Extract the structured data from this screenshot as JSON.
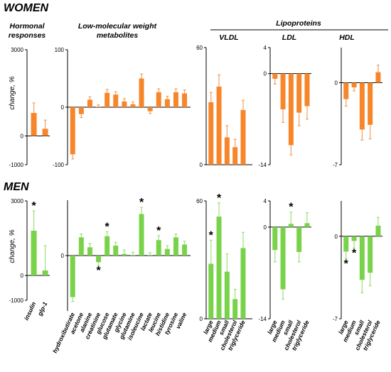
{
  "sections": {
    "women": "WOMEN",
    "men": "MEN"
  },
  "ylabel": "change, %",
  "group_headers": {
    "hormonal": [
      "Hormonal",
      "responses"
    ],
    "metabolites": [
      "Low-molecular weight",
      "metabolites"
    ],
    "lipoproteins": "Lipoproteins",
    "vldl": "VLDL",
    "ldl": "LDL",
    "hdl": "HDL"
  },
  "colors": {
    "women": "#F7862B",
    "men": "#79D34A",
    "error": "#f0a060",
    "error_men": "#9ee07a"
  },
  "chart_data": [
    {
      "id": "women-hormonal",
      "type": "bar",
      "sex": "women",
      "panel": "hormonal",
      "categories": [
        "insulin",
        "glp-1"
      ],
      "values": [
        800,
        250
      ],
      "errors": [
        350,
        300
      ],
      "significant": [
        false,
        false
      ],
      "ylim": [
        -1000,
        3000
      ],
      "yticks": [
        "3000",
        "0",
        "-1000"
      ],
      "ytick_values": [
        3000,
        0,
        -1000
      ]
    },
    {
      "id": "women-metabolites",
      "type": "bar",
      "sex": "women",
      "panel": "metabolites",
      "categories": [
        "hydroxibutirate",
        "acetone",
        "alanine",
        "creatinine",
        "glucose",
        "glutamate",
        "glycine",
        "glutamine",
        "isoleucine",
        "lactate",
        "leucine",
        "histidine",
        "tyrosine",
        "valine"
      ],
      "values": [
        -82,
        -12,
        13,
        1,
        25,
        22,
        10,
        5,
        50,
        -7,
        26,
        14,
        26,
        24
      ],
      "errors": [
        8,
        6,
        5,
        3,
        6,
        5,
        5,
        4,
        8,
        4,
        6,
        5,
        6,
        6
      ],
      "significant": [
        false,
        false,
        false,
        false,
        false,
        false,
        false,
        false,
        false,
        false,
        false,
        false,
        false,
        false
      ],
      "ylim": [
        -100,
        100
      ],
      "yticks": [
        "100",
        "0",
        "-100"
      ],
      "ytick_values": [
        100,
        0,
        -100
      ]
    },
    {
      "id": "women-vldl",
      "type": "bar",
      "sex": "women",
      "panel": "vldl",
      "categories": [
        "large",
        "medium",
        "small",
        "cholesterol",
        "triglyceride"
      ],
      "values": [
        32,
        40,
        14,
        9,
        28
      ],
      "errors": [
        5,
        6,
        6,
        4,
        5
      ],
      "significant": [
        false,
        false,
        false,
        false,
        false
      ],
      "ylim": [
        0,
        60
      ],
      "yticks": [
        "60",
        "0"
      ],
      "ytick_values": [
        60,
        0
      ]
    },
    {
      "id": "women-ldl",
      "type": "bar",
      "sex": "women",
      "panel": "ldl",
      "categories": [
        "large",
        "medium",
        "small",
        "cholesterol",
        "triglyceride"
      ],
      "values": [
        -0.8,
        -5.5,
        -11,
        -6,
        -5
      ],
      "errors": [
        0.8,
        2,
        1.5,
        2,
        2
      ],
      "significant": [
        false,
        false,
        false,
        false,
        false
      ],
      "ylim": [
        -14,
        4
      ],
      "yticks": [
        "4",
        "0",
        "-14"
      ],
      "ytick_values": [
        4,
        0,
        -14
      ]
    },
    {
      "id": "women-hdl",
      "type": "bar",
      "sex": "women",
      "panel": "hdl",
      "categories": [
        "large",
        "medium",
        "small",
        "cholesterol",
        "triglyceride"
      ],
      "values": [
        -1.4,
        -0.4,
        -4,
        -3.6,
        0.9
      ],
      "errors": [
        0.6,
        0.3,
        0.9,
        1.2,
        0.6
      ],
      "significant": [
        false,
        false,
        false,
        false,
        false
      ],
      "ylim": [
        -7,
        3
      ],
      "yticks": [
        "0",
        "-7"
      ],
      "ytick_values": [
        0,
        -7
      ]
    },
    {
      "id": "men-hormonal",
      "type": "bar",
      "sex": "men",
      "panel": "hormonal",
      "categories": [
        "insulin",
        "glp-1"
      ],
      "values": [
        1800,
        200
      ],
      "errors": [
        800,
        1000
      ],
      "significant": [
        true,
        false
      ],
      "ylim": [
        -1000,
        3000
      ],
      "yticks": [
        "3000",
        "0",
        "-1000"
      ],
      "ytick_values": [
        3000,
        0,
        -1000
      ]
    },
    {
      "id": "men-metabolites",
      "type": "bar",
      "sex": "men",
      "panel": "metabolites",
      "categories": [
        "hydroxibutirate",
        "acetone",
        "alanine",
        "creatinine",
        "glucose",
        "glutamate",
        "glycine",
        "glutamine",
        "isoleucine",
        "lactate",
        "leucine",
        "histidine",
        "tyrosine",
        "valine"
      ],
      "values": [
        -75,
        33,
        15,
        -12,
        35,
        18,
        3,
        1,
        75,
        1,
        28,
        12,
        33,
        20
      ],
      "errors": [
        8,
        6,
        7,
        6,
        8,
        6,
        7,
        5,
        12,
        4,
        8,
        6,
        6,
        6
      ],
      "significant": [
        false,
        false,
        false,
        true,
        true,
        false,
        false,
        false,
        true,
        false,
        true,
        false,
        false,
        false
      ],
      "ylim": [
        -100,
        100
      ],
      "yticks": [
        "0"
      ],
      "ytick_values": [
        0
      ]
    },
    {
      "id": "men-vldl",
      "type": "bar",
      "sex": "men",
      "panel": "vldl",
      "categories": [
        "large",
        "medium",
        "small",
        "cholesterol",
        "triglyceride"
      ],
      "values": [
        28,
        52,
        24,
        10,
        36
      ],
      "errors": [
        12,
        7,
        9,
        5,
        8
      ],
      "significant": [
        true,
        true,
        false,
        false,
        false
      ],
      "ylim": [
        0,
        60
      ],
      "yticks": [
        "60",
        "0"
      ],
      "ytick_values": [
        60,
        0
      ]
    },
    {
      "id": "men-ldl",
      "type": "bar",
      "sex": "men",
      "panel": "ldl",
      "categories": [
        "large",
        "medium",
        "small",
        "cholesterol",
        "triglyceride"
      ],
      "values": [
        -3.5,
        -9.5,
        0.5,
        -3.8,
        0.6
      ],
      "errors": [
        1.8,
        1.5,
        1.8,
        1.5,
        1.6
      ],
      "significant": [
        false,
        false,
        true,
        false,
        false
      ],
      "ylim": [
        -14,
        4
      ],
      "yticks": [
        "4",
        "0",
        "-14"
      ],
      "ytick_values": [
        4,
        0,
        -14
      ]
    },
    {
      "id": "men-hdl",
      "type": "bar",
      "sex": "men",
      "panel": "hdl",
      "categories": [
        "large",
        "medium",
        "small",
        "cholesterol",
        "triglyceride"
      ],
      "values": [
        -1.3,
        -0.4,
        -3.7,
        -3.1,
        0.9
      ],
      "errors": [
        0.6,
        0.6,
        1.1,
        1.1,
        0.7
      ],
      "significant": [
        true,
        true,
        false,
        false,
        false
      ],
      "ylim": [
        -7,
        3
      ],
      "yticks": [
        "0",
        "-7"
      ],
      "ytick_values": [
        0,
        -7
      ]
    }
  ]
}
